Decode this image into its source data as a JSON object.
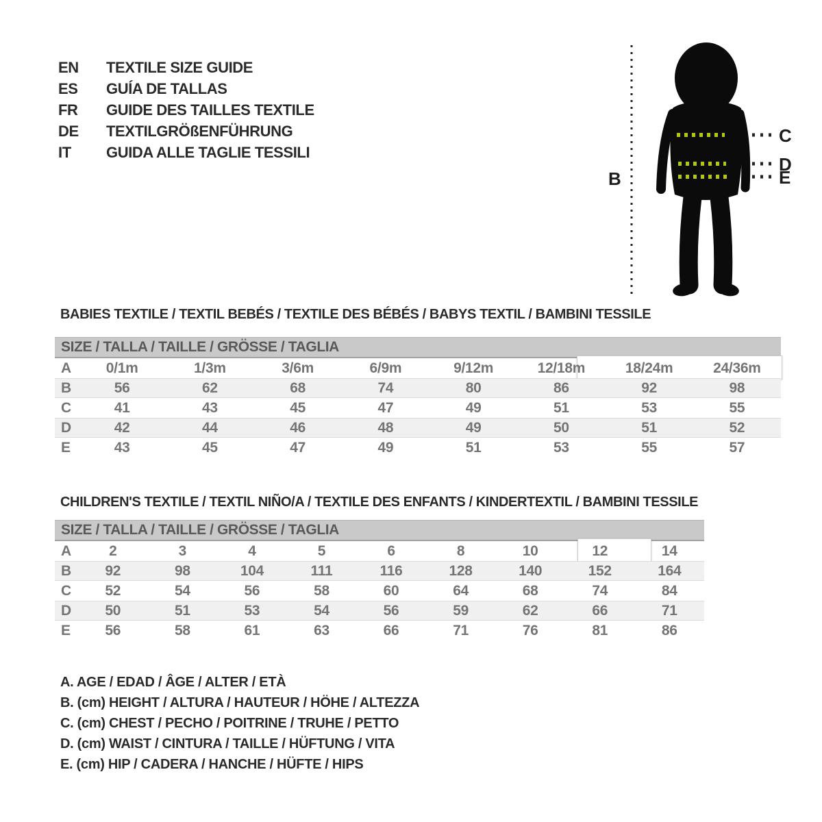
{
  "colors": {
    "background": "#ffffff",
    "text_dark": "#2a2a2a",
    "table_text": "#747474",
    "header_bar_bg": "#c9c9c9",
    "header_bar_text": "#595959",
    "stripe_bg": "#f0f0f0",
    "stripe_border": "#dcdcdc",
    "highlight_border": "#cccccc",
    "silhouette": "#0b0b0b",
    "measure_dash": "#b5c70b",
    "guide_dash": "#242424"
  },
  "title_block": {
    "items": [
      {
        "code": "EN",
        "text": "TEXTILE SIZE GUIDE"
      },
      {
        "code": "ES",
        "text": "GUÍA DE TALLAS"
      },
      {
        "code": "FR",
        "text": "GUIDE DES TAILLES TEXTILE"
      },
      {
        "code": "DE",
        "text": "TEXTILGRÖßENFÜHRUNG"
      },
      {
        "code": "IT",
        "text": "GUIDA ALLE TAGLIE TESSILI"
      }
    ]
  },
  "figure": {
    "height_label": "B",
    "chest_label": "C",
    "waist_label": "D",
    "hip_label": "E"
  },
  "babies": {
    "heading": "BABIES TEXTILE / TEXTIL BEBÉS / TEXTILE DES BÉBÉS / BABYS TEXTIL / BAMBINI TESSILE",
    "size_header": "SIZE / TALLA / TAILLE / GRÖSSE / TAGLIA",
    "rows": [
      {
        "label": "A",
        "values": [
          "0/1m",
          "1/3m",
          "3/6m",
          "6/9m",
          "9/12m",
          "12/18m",
          "18/24m",
          "24/36m"
        ]
      },
      {
        "label": "B",
        "values": [
          "56",
          "62",
          "68",
          "74",
          "80",
          "86",
          "92",
          "98"
        ]
      },
      {
        "label": "C",
        "values": [
          "41",
          "43",
          "45",
          "47",
          "49",
          "51",
          "53",
          "55"
        ]
      },
      {
        "label": "D",
        "values": [
          "42",
          "44",
          "46",
          "48",
          "49",
          "50",
          "51",
          "52"
        ]
      },
      {
        "label": "E",
        "values": [
          "43",
          "45",
          "47",
          "49",
          "51",
          "53",
          "55",
          "57"
        ]
      }
    ]
  },
  "children": {
    "heading": "CHILDREN'S TEXTILE / TEXTIL NIÑO/A / TEXTILE DES ENFANTS / KINDERTEXTIL / BAMBINI TESSILE",
    "size_header": "SIZE / TALLA / TAILLE / GRÖSSE / TAGLIA",
    "rows": [
      {
        "label": "A",
        "values": [
          "2",
          "3",
          "4",
          "5",
          "6",
          "8",
          "10",
          "12",
          "14"
        ]
      },
      {
        "label": "B",
        "values": [
          "92",
          "98",
          "104",
          "111",
          "116",
          "128",
          "140",
          "152",
          "164"
        ]
      },
      {
        "label": "C",
        "values": [
          "52",
          "54",
          "56",
          "58",
          "60",
          "64",
          "68",
          "74",
          "84"
        ]
      },
      {
        "label": "D",
        "values": [
          "50",
          "51",
          "53",
          "54",
          "56",
          "59",
          "62",
          "66",
          "71"
        ]
      },
      {
        "label": "E",
        "values": [
          "56",
          "58",
          "61",
          "63",
          "66",
          "71",
          "76",
          "81",
          "86"
        ]
      }
    ]
  },
  "legend": {
    "items": [
      "A. AGE / EDAD / ÂGE / ALTER / ETÀ",
      "B. (cm) HEIGHT / ALTURA / HAUTEUR / HÖHE / ALTEZZA",
      "C. (cm) CHEST / PECHO / POITRINE / TRUHE / PETTO",
      "D. (cm) WAIST / CINTURA / TAILLE / HÜFTUNG / VITA",
      "E. (cm) HIP / CADERA / HANCHE / HÜFTE / HIPS"
    ]
  }
}
